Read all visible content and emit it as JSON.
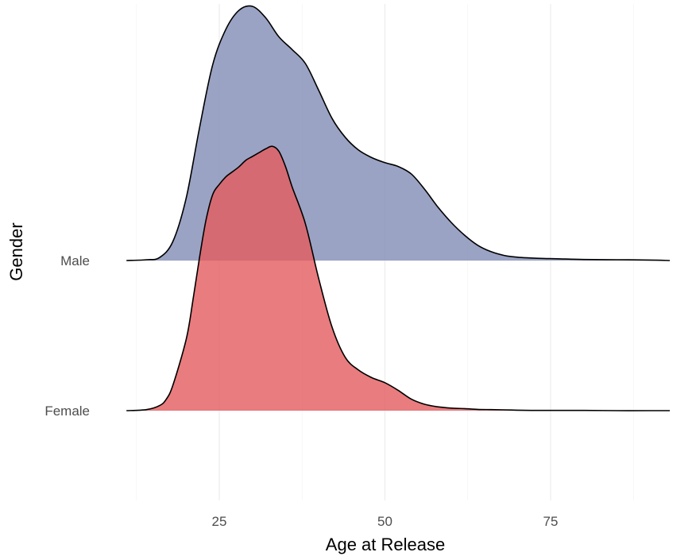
{
  "chart_data": {
    "type": "ridgeline",
    "title": "",
    "xlabel": "Age at Release",
    "ylabel": "Gender",
    "xlim": [
      11,
      94
    ],
    "xticks": [
      25,
      50,
      75
    ],
    "grid": true,
    "legend": "none",
    "colors": {
      "Male": "#8893b8",
      "Female": "#e45b5e"
    },
    "categories": [
      "Female",
      "Male"
    ],
    "series": [
      {
        "name": "Male",
        "x": [
          11,
          14,
          16,
          18,
          20,
          22,
          24,
          26,
          28,
          30,
          32,
          34,
          36,
          38,
          40,
          42,
          44,
          46,
          48,
          50,
          52,
          54,
          56,
          58,
          60,
          62,
          64,
          66,
          68,
          70,
          72,
          74,
          76,
          80,
          85,
          90,
          93
        ],
        "density": [
          0.0,
          0.003,
          0.012,
          0.075,
          0.245,
          0.52,
          0.77,
          0.91,
          0.985,
          1.0,
          0.955,
          0.88,
          0.83,
          0.775,
          0.67,
          0.56,
          0.485,
          0.435,
          0.405,
          0.385,
          0.37,
          0.34,
          0.28,
          0.21,
          0.15,
          0.1,
          0.06,
          0.035,
          0.02,
          0.013,
          0.01,
          0.008,
          0.007,
          0.004,
          0.003,
          0.002,
          0.0
        ]
      },
      {
        "name": "Female",
        "x": [
          11,
          14,
          16,
          17,
          18,
          20,
          21,
          22,
          23,
          24,
          25,
          26,
          27,
          28,
          29,
          30,
          31,
          32,
          33,
          34,
          35,
          36,
          38,
          40,
          42,
          44,
          46,
          48,
          50,
          52,
          54,
          56,
          58,
          60,
          62,
          64,
          66,
          68,
          70,
          72,
          74,
          76,
          78,
          80,
          85,
          90,
          93
        ],
        "density": [
          0.0,
          0.004,
          0.02,
          0.045,
          0.1,
          0.28,
          0.43,
          0.6,
          0.75,
          0.85,
          0.89,
          0.92,
          0.94,
          0.96,
          0.985,
          1.0,
          1.015,
          1.03,
          1.04,
          1.02,
          0.96,
          0.88,
          0.735,
          0.52,
          0.33,
          0.21,
          0.16,
          0.13,
          0.11,
          0.08,
          0.045,
          0.025,
          0.015,
          0.01,
          0.008,
          0.005,
          0.004,
          0.003,
          0.002,
          0.001,
          0.001,
          0.001,
          0.001,
          0.001,
          0.0,
          0.0,
          0.0
        ]
      }
    ]
  }
}
